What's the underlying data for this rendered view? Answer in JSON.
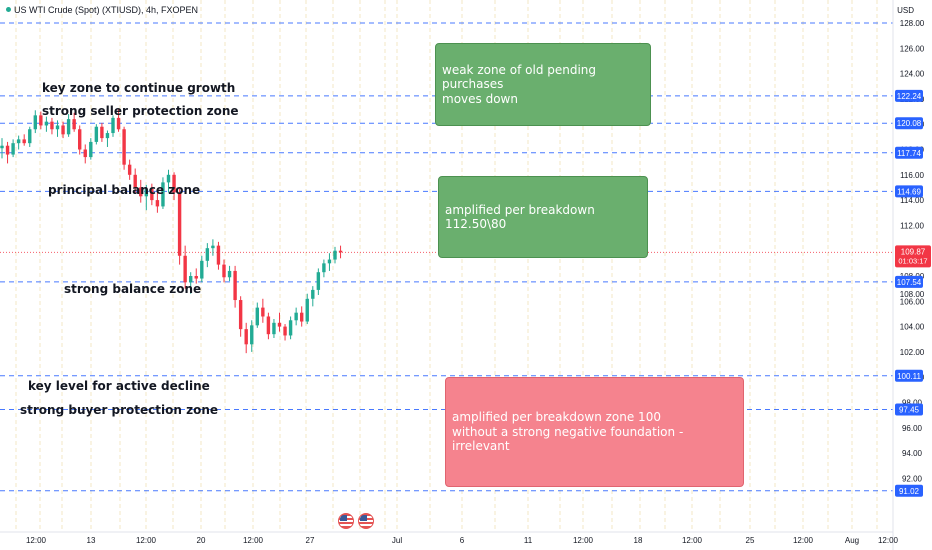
{
  "header": {
    "symbol": "US WTI Crude (Spot) (XTIUSD), 4h, FXOPEN",
    "currency": "USD"
  },
  "colors": {
    "up": "#22ab94",
    "down": "#f23645",
    "level_line": "#2962ff",
    "green_box": "#6aaf6e",
    "red_box": "#f5838e"
  },
  "annotations": {
    "labels": [
      "key zone to continue growth",
      "strong seller protection zone",
      "principal balance zone",
      "strong balance zone",
      "key level for active decline",
      "strong buyer protection zone"
    ],
    "boxes": [
      "weak zone of  old pending purchases\nmoves down",
      "amplified per breakdown 112.50\\80",
      "amplified per breakdown zone 100\nwithout a strong negative foundation - irrelevant"
    ]
  },
  "chart_data": {
    "type": "candlestick",
    "y_ticks": [
      128,
      126,
      124,
      122,
      120,
      118,
      116,
      114,
      112,
      110,
      108,
      106,
      104,
      102,
      100,
      98,
      96,
      94,
      92
    ],
    "x_tick_labels": [
      "12:00",
      "13",
      "12:00",
      "20",
      "12:00",
      "27",
      "Jul",
      "6",
      "11",
      "12:00",
      "18",
      "12:00",
      "25",
      "12:00",
      "Aug",
      "12:00"
    ],
    "horizontal_levels": [
      128.0,
      122.24,
      120.08,
      117.74,
      114.69,
      107.54,
      100.11,
      97.45,
      91.02
    ],
    "level_labels": [
      "122.24",
      "120.08",
      "117.74",
      "114.69",
      "107.54",
      "100.11",
      "97.45",
      "91.02"
    ],
    "current_price": {
      "price": "109.87",
      "countdown": "01:03:17",
      "value": 109.87
    },
    "partial_tick_label": "108.00",
    "candles": [
      [
        118.1,
        118.9,
        117.3,
        118.3
      ],
      [
        118.3,
        118.6,
        116.9,
        117.6
      ],
      [
        117.6,
        118.8,
        117.4,
        118.5
      ],
      [
        118.5,
        119.1,
        118.0,
        118.8
      ],
      [
        118.8,
        119.2,
        118.3,
        118.5
      ],
      [
        118.5,
        119.8,
        118.2,
        119.6
      ],
      [
        119.6,
        121.1,
        119.3,
        120.7
      ],
      [
        120.7,
        121.0,
        119.6,
        119.9
      ],
      [
        119.9,
        120.6,
        119.4,
        120.2
      ],
      [
        120.2,
        120.5,
        119.2,
        119.6
      ],
      [
        119.6,
        120.3,
        119.0,
        119.9
      ],
      [
        119.9,
        120.2,
        118.9,
        119.2
      ],
      [
        119.2,
        120.8,
        119.0,
        120.4
      ],
      [
        120.4,
        120.9,
        119.4,
        119.6
      ],
      [
        119.6,
        119.9,
        117.6,
        118.0
      ],
      [
        118.0,
        118.4,
        116.9,
        117.4
      ],
      [
        117.4,
        118.9,
        117.2,
        118.6
      ],
      [
        118.6,
        120.0,
        118.4,
        119.8
      ],
      [
        119.8,
        120.1,
        118.6,
        118.9
      ],
      [
        118.9,
        119.5,
        118.2,
        119.3
      ],
      [
        119.3,
        120.7,
        119.0,
        120.5
      ],
      [
        120.5,
        121.2,
        119.4,
        119.6
      ],
      [
        119.6,
        119.8,
        116.4,
        116.8
      ],
      [
        116.8,
        117.2,
        115.6,
        116.0
      ],
      [
        116.0,
        116.5,
        114.6,
        115.0
      ],
      [
        115.0,
        115.6,
        113.8,
        114.3
      ],
      [
        114.3,
        115.2,
        113.2,
        114.9
      ],
      [
        114.9,
        115.3,
        113.6,
        114.0
      ],
      [
        114.0,
        114.6,
        113.0,
        113.5
      ],
      [
        113.5,
        115.8,
        113.3,
        115.4
      ],
      [
        115.4,
        116.4,
        114.6,
        116.0
      ],
      [
        116.0,
        116.2,
        114.0,
        114.6
      ],
      [
        114.6,
        114.9,
        108.9,
        109.6
      ],
      [
        109.6,
        110.4,
        107.0,
        107.5
      ],
      [
        107.5,
        108.3,
        106.6,
        108.0
      ],
      [
        108.0,
        108.6,
        107.4,
        107.8
      ],
      [
        107.8,
        109.6,
        107.5,
        109.2
      ],
      [
        109.2,
        110.6,
        108.7,
        110.2
      ],
      [
        110.2,
        110.9,
        109.6,
        110.4
      ],
      [
        110.4,
        110.7,
        108.5,
        108.9
      ],
      [
        108.9,
        109.3,
        107.5,
        107.9
      ],
      [
        107.9,
        108.8,
        107.6,
        108.4
      ],
      [
        108.4,
        108.8,
        105.5,
        106.1
      ],
      [
        106.1,
        106.4,
        103.2,
        103.8
      ],
      [
        103.8,
        104.3,
        101.9,
        102.6
      ],
      [
        102.6,
        104.5,
        102.0,
        104.1
      ],
      [
        104.1,
        105.9,
        103.9,
        105.5
      ],
      [
        105.5,
        106.2,
        104.3,
        104.8
      ],
      [
        104.8,
        105.1,
        103.0,
        103.4
      ],
      [
        103.4,
        104.6,
        103.1,
        104.3
      ],
      [
        104.3,
        105.1,
        103.6,
        104.0
      ],
      [
        104.0,
        104.2,
        102.9,
        103.3
      ],
      [
        103.3,
        104.8,
        103.0,
        104.5
      ],
      [
        104.5,
        105.5,
        104.1,
        105.1
      ],
      [
        105.1,
        105.6,
        104.0,
        104.4
      ],
      [
        104.4,
        106.6,
        104.2,
        106.2
      ],
      [
        106.2,
        107.2,
        105.6,
        106.9
      ],
      [
        106.9,
        108.6,
        106.5,
        108.3
      ],
      [
        108.3,
        109.3,
        107.9,
        109.0
      ],
      [
        109.0,
        109.8,
        108.4,
        109.3
      ],
      [
        109.3,
        110.3,
        109.0,
        110.0
      ],
      [
        110.0,
        110.4,
        109.4,
        109.87
      ]
    ]
  }
}
